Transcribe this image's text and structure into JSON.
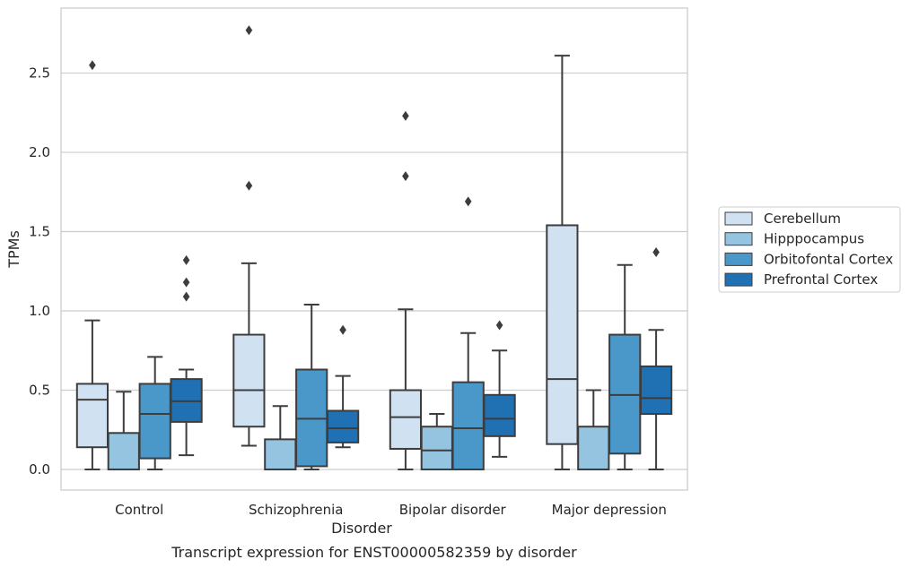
{
  "caption": "Transcript expression for ENST00000582359 by disorder",
  "chart_data": {
    "type": "boxplot",
    "xlabel": "Disorder",
    "ylabel": "TPMs",
    "ylim": [
      -0.13,
      2.91
    ],
    "yticks": [
      0.0,
      0.5,
      1.0,
      1.5,
      2.0,
      2.5
    ],
    "ytick_labels": [
      "0.0",
      "0.5",
      "1.0",
      "1.5",
      "2.0",
      "2.5"
    ],
    "categories": [
      "Control",
      "Schizophrenia",
      "Bipolar disorder",
      "Major depression"
    ],
    "grid": "horizontal",
    "legend_position": "right",
    "series": [
      {
        "name": "Cerebellum",
        "color": "#d0e1f2",
        "boxes": [
          {
            "whisker_low": 0.0,
            "q1": 0.14,
            "median": 0.44,
            "q3": 0.54,
            "whisker_high": 0.94,
            "outliers": [
              2.55
            ]
          },
          {
            "whisker_low": 0.15,
            "q1": 0.27,
            "median": 0.5,
            "q3": 0.85,
            "whisker_high": 1.3,
            "outliers": [
              1.79,
              2.77
            ]
          },
          {
            "whisker_low": 0.0,
            "q1": 0.13,
            "median": 0.33,
            "q3": 0.5,
            "whisker_high": 1.01,
            "outliers": [
              1.85,
              2.23
            ]
          },
          {
            "whisker_low": 0.0,
            "q1": 0.16,
            "median": 0.57,
            "q3": 1.54,
            "whisker_high": 2.61,
            "outliers": []
          }
        ]
      },
      {
        "name": "Hipppocampus",
        "color": "#94c4df",
        "boxes": [
          {
            "whisker_low": 0.0,
            "q1": 0.0,
            "median": 0.0,
            "q3": 0.23,
            "whisker_high": 0.49,
            "outliers": []
          },
          {
            "whisker_low": 0.0,
            "q1": 0.0,
            "median": 0.0,
            "q3": 0.19,
            "whisker_high": 0.4,
            "outliers": []
          },
          {
            "whisker_low": 0.0,
            "q1": 0.0,
            "median": 0.12,
            "q3": 0.27,
            "whisker_high": 0.35,
            "outliers": []
          },
          {
            "whisker_low": 0.0,
            "q1": 0.0,
            "median": 0.0,
            "q3": 0.27,
            "whisker_high": 0.5,
            "outliers": []
          }
        ]
      },
      {
        "name": "Orbitofontal Cortex",
        "color": "#4a98c9",
        "boxes": [
          {
            "whisker_low": 0.0,
            "q1": 0.07,
            "median": 0.35,
            "q3": 0.54,
            "whisker_high": 0.71,
            "outliers": []
          },
          {
            "whisker_low": 0.0,
            "q1": 0.02,
            "median": 0.32,
            "q3": 0.63,
            "whisker_high": 1.04,
            "outliers": []
          },
          {
            "whisker_low": 0.0,
            "q1": 0.0,
            "median": 0.26,
            "q3": 0.55,
            "whisker_high": 0.86,
            "outliers": [
              1.69
            ]
          },
          {
            "whisker_low": 0.0,
            "q1": 0.1,
            "median": 0.47,
            "q3": 0.85,
            "whisker_high": 1.29,
            "outliers": []
          }
        ]
      },
      {
        "name": "Prefrontal Cortex",
        "color": "#2070b4",
        "boxes": [
          {
            "whisker_low": 0.09,
            "q1": 0.3,
            "median": 0.43,
            "q3": 0.57,
            "whisker_high": 0.63,
            "outliers": [
              1.09,
              1.18,
              1.32
            ]
          },
          {
            "whisker_low": 0.14,
            "q1": 0.17,
            "median": 0.26,
            "q3": 0.37,
            "whisker_high": 0.59,
            "outliers": [
              0.88
            ]
          },
          {
            "whisker_low": 0.08,
            "q1": 0.21,
            "median": 0.32,
            "q3": 0.47,
            "whisker_high": 0.75,
            "outliers": [
              0.91
            ]
          },
          {
            "whisker_low": 0.0,
            "q1": 0.35,
            "median": 0.45,
            "q3": 0.65,
            "whisker_high": 0.88,
            "outliers": [
              1.37
            ]
          }
        ]
      }
    ]
  }
}
